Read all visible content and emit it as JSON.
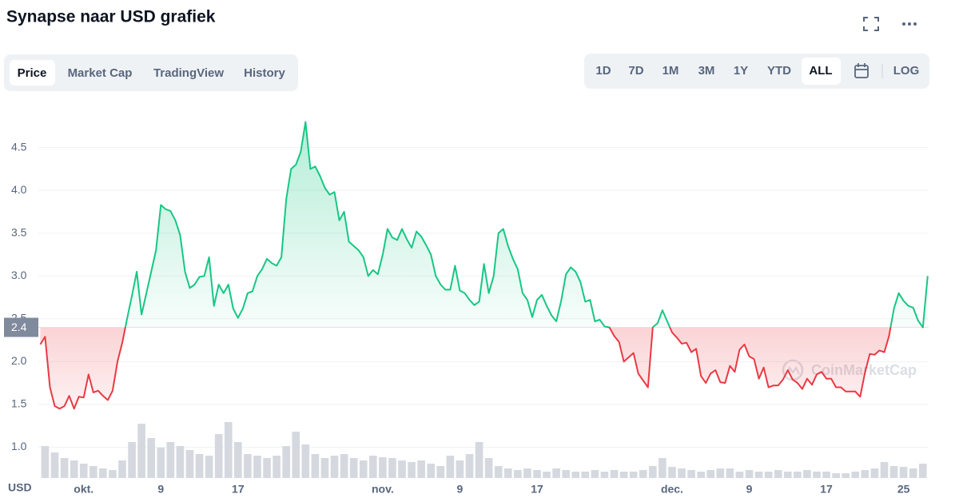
{
  "header": {
    "title": "Synapse naar USD grafiek"
  },
  "tabs": [
    "Price",
    "Market Cap",
    "TradingView",
    "History"
  ],
  "active_tab": 0,
  "ranges": [
    "1D",
    "7D",
    "1M",
    "3M",
    "1Y",
    "YTD",
    "ALL"
  ],
  "active_range": 6,
  "log_button": "LOG",
  "watermark": "CoinMarketCap",
  "chart_data": {
    "type": "line",
    "y_unit": "USD",
    "baseline": 2.4,
    "color_up": "#16c784",
    "color_down": "#ea3943",
    "grid": true,
    "xlim": [
      -4.7,
      87.6
    ],
    "ylim": [
      0.64,
      5.01
    ],
    "xticks": [
      {
        "value": 0,
        "label": "okt."
      },
      {
        "value": 8,
        "label": "9"
      },
      {
        "value": 16,
        "label": "17"
      },
      {
        "value": 31,
        "label": "nov."
      },
      {
        "value": 39,
        "label": "9"
      },
      {
        "value": 47,
        "label": "17"
      },
      {
        "value": 61,
        "label": "dec."
      },
      {
        "value": 69,
        "label": "9"
      },
      {
        "value": 77,
        "label": "17"
      },
      {
        "value": 85,
        "label": "25"
      }
    ],
    "yticks": [
      {
        "value": 1,
        "label": "1.0"
      },
      1.5,
      {
        "value": 2,
        "label": "2.0"
      },
      2.5,
      {
        "value": 3,
        "label": "3.0"
      },
      3.5,
      {
        "value": 4,
        "label": "4.0"
      },
      4.5
    ],
    "x": [
      -4.5,
      -4,
      -3.5,
      -3,
      -2.5,
      -2,
      -1.5,
      -1,
      -0.5,
      0,
      0.5,
      1,
      1.5,
      2,
      2.5,
      3,
      3.5,
      4,
      4.5,
      5,
      5.5,
      6,
      6.5,
      7,
      7.5,
      8,
      8.5,
      9,
      9.5,
      10,
      10.5,
      11,
      11.5,
      12,
      12.5,
      13,
      13.5,
      14,
      14.5,
      15,
      15.5,
      16,
      16.5,
      17,
      17.5,
      18,
      18.5,
      19,
      19.5,
      20,
      20.5,
      21,
      21.5,
      22,
      22.5,
      23,
      23.5,
      24,
      24.5,
      25,
      25.5,
      26,
      26.5,
      27,
      27.5,
      28,
      28.5,
      29,
      29.5,
      30,
      30.5,
      31,
      31.5,
      32,
      32.5,
      33,
      33.5,
      34,
      34.5,
      35,
      35.5,
      36,
      36.5,
      37,
      37.5,
      38,
      38.5,
      39,
      39.5,
      40,
      40.5,
      41,
      41.5,
      42,
      42.5,
      43,
      43.5,
      44,
      44.5,
      45,
      45.5,
      46,
      46.5,
      47,
      47.5,
      48,
      48.5,
      49,
      49.5,
      50,
      50.5,
      51,
      51.5,
      52,
      52.5,
      53,
      53.5,
      54,
      54.5,
      55,
      55.5,
      56,
      56.5,
      57,
      57.5,
      58,
      58.5,
      59,
      59.5,
      60,
      60.5,
      61,
      61.5,
      62,
      62.5,
      63,
      63.5,
      64,
      64.5,
      65,
      65.5,
      66,
      66.5,
      67,
      67.5,
      68,
      68.5,
      69,
      69.5,
      70,
      70.5,
      71,
      71.5,
      72,
      72.5,
      73,
      73.5,
      74,
      74.5,
      75,
      75.5,
      76,
      76.5,
      77,
      77.5,
      78,
      78.5,
      79,
      79.5,
      80,
      80.5,
      81,
      81.5,
      82,
      82.5,
      83,
      83.5,
      84,
      84.5,
      85,
      85.5,
      86,
      86.5,
      87,
      87.5
    ],
    "values": [
      2.2,
      2.29,
      1.7,
      1.48,
      1.45,
      1.48,
      1.6,
      1.45,
      1.59,
      1.58,
      1.85,
      1.64,
      1.66,
      1.6,
      1.55,
      1.66,
      2.0,
      2.22,
      2.5,
      2.77,
      3.05,
      2.55,
      2.8,
      3.05,
      3.3,
      3.83,
      3.78,
      3.76,
      3.65,
      3.48,
      3.05,
      2.86,
      2.9,
      2.99,
      3.0,
      3.22,
      2.65,
      2.9,
      2.8,
      2.9,
      2.62,
      2.51,
      2.62,
      2.8,
      2.82,
      3.0,
      3.08,
      3.2,
      3.15,
      3.12,
      3.22,
      3.9,
      4.25,
      4.3,
      4.45,
      4.8,
      4.25,
      4.28,
      4.17,
      4.03,
      3.95,
      3.98,
      3.65,
      3.75,
      3.4,
      3.35,
      3.3,
      3.22,
      3.0,
      3.07,
      3.02,
      3.25,
      3.55,
      3.45,
      3.42,
      3.55,
      3.43,
      3.33,
      3.52,
      3.46,
      3.36,
      3.25,
      3.0,
      2.9,
      2.84,
      2.84,
      3.12,
      2.83,
      2.8,
      2.72,
      2.66,
      2.7,
      3.14,
      2.8,
      3.0,
      3.5,
      3.55,
      3.35,
      3.2,
      3.08,
      2.8,
      2.72,
      2.52,
      2.72,
      2.78,
      2.65,
      2.54,
      2.47,
      2.71,
      3.02,
      3.1,
      3.05,
      2.93,
      2.7,
      2.72,
      2.47,
      2.49,
      2.41,
      2.4,
      2.3,
      2.23,
      2.0,
      2.05,
      2.1,
      1.86,
      1.78,
      1.7,
      2.4,
      2.45,
      2.6,
      2.47,
      2.34,
      2.28,
      2.21,
      2.22,
      2.11,
      2.15,
      1.83,
      1.75,
      1.86,
      1.9,
      1.76,
      1.75,
      1.95,
      1.88,
      2.14,
      2.2,
      2.06,
      2.03,
      1.8,
      1.93,
      1.7,
      1.72,
      1.72,
      1.79,
      1.9,
      1.79,
      1.75,
      1.68,
      1.8,
      1.73,
      1.85,
      1.88,
      1.8,
      1.8,
      1.7,
      1.7,
      1.65,
      1.65,
      1.65,
      1.59,
      1.87,
      2.09,
      2.08,
      2.13,
      2.11,
      2.3,
      2.62,
      2.8,
      2.71,
      2.65,
      2.63,
      2.48,
      2.4,
      3.0
    ],
    "volume": {
      "color": "#d5d9df",
      "ylim": [
        0,
        100
      ],
      "x": [
        -4,
        -3,
        -2,
        -1,
        0,
        1,
        2,
        3,
        4,
        5,
        6,
        7,
        8,
        9,
        10,
        11,
        12,
        13,
        14,
        15,
        16,
        17,
        18,
        19,
        20,
        21,
        22,
        23,
        24,
        25,
        26,
        27,
        28,
        29,
        30,
        31,
        32,
        33,
        34,
        35,
        36,
        37,
        38,
        39,
        40,
        41,
        42,
        43,
        44,
        45,
        46,
        47,
        48,
        49,
        50,
        51,
        52,
        53,
        54,
        55,
        56,
        57,
        58,
        59,
        60,
        61,
        62,
        63,
        64,
        65,
        66,
        67,
        68,
        69,
        70,
        71,
        72,
        73,
        74,
        75,
        76,
        77,
        78,
        79,
        80,
        81,
        82,
        83,
        84,
        85,
        86,
        87
      ],
      "values": [
        40,
        32,
        25,
        22,
        18,
        15,
        12,
        10,
        22,
        45,
        68,
        50,
        38,
        45,
        40,
        35,
        30,
        28,
        55,
        70,
        45,
        30,
        28,
        25,
        28,
        40,
        58,
        42,
        30,
        25,
        28,
        30,
        25,
        22,
        28,
        26,
        25,
        22,
        20,
        22,
        18,
        15,
        28,
        22,
        30,
        45,
        25,
        15,
        12,
        10,
        12,
        10,
        8,
        12,
        10,
        8,
        8,
        10,
        8,
        10,
        8,
        8,
        10,
        15,
        25,
        14,
        12,
        10,
        8,
        10,
        12,
        12,
        8,
        10,
        8,
        8,
        10,
        8,
        8,
        10,
        8,
        8,
        6,
        6,
        8,
        10,
        12,
        20,
        15,
        14,
        12,
        18
      ]
    }
  }
}
